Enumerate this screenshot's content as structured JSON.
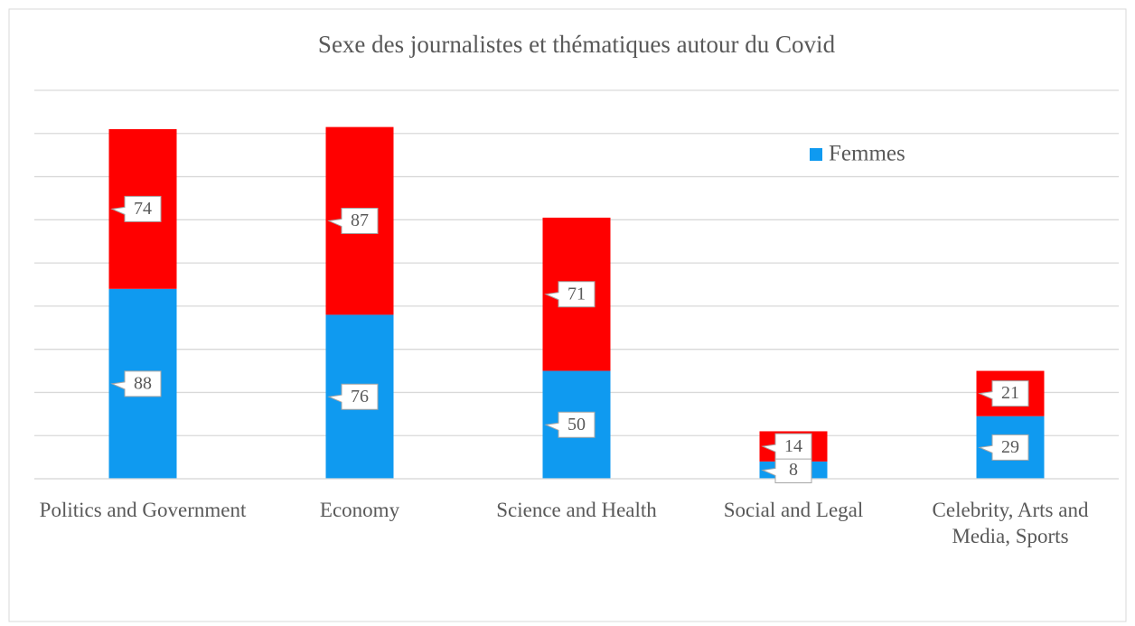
{
  "chart_data": {
    "type": "stacked_bar",
    "title": "Sexe des journalistes et thématiques autour du Covid",
    "categories": [
      "Politics and Government",
      "Economy",
      "Science and Health",
      "Social and Legal",
      "Celebrity, Arts and Media, Sports"
    ],
    "series": [
      {
        "name": "Femmes",
        "color": "#0f9af0",
        "values": [
          88,
          76,
          50,
          8,
          29
        ]
      },
      {
        "color": "#ff0000",
        "values": [
          74,
          87,
          71,
          14,
          21
        ]
      }
    ],
    "ylim": [
      0,
      180
    ],
    "yticks": [
      0,
      20,
      40,
      60,
      80,
      100,
      120,
      140,
      160,
      180
    ],
    "grid": true,
    "legend": "top-right"
  }
}
